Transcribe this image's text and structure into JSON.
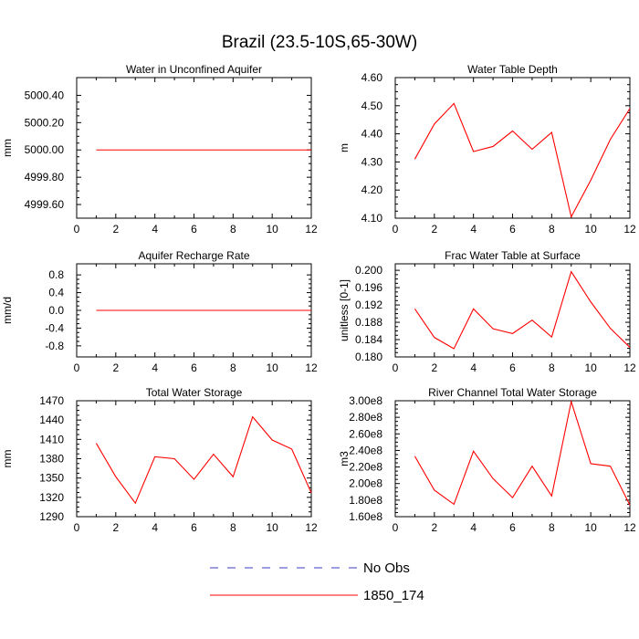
{
  "figure": {
    "title": "Brazil (23.5-10S,65-30W)"
  },
  "colors": {
    "model_line": "#ff0000",
    "obs_line": "#3b3bc4",
    "axes": "#000000"
  },
  "legend": {
    "entries": [
      {
        "label": "No Obs",
        "style": "dashed",
        "color_key": "obs_line"
      },
      {
        "label": "1850_174",
        "style": "solid",
        "color_key": "model_line"
      }
    ]
  },
  "chart_data": [
    {
      "type": "line",
      "title": "Water in Unconfined Aquifer",
      "xlabel": "",
      "ylabel": "mm",
      "xlim": [
        0,
        12
      ],
      "ylim": [
        4999.5,
        5000.53
      ],
      "xticks": [
        0,
        2,
        4,
        6,
        8,
        10,
        12
      ],
      "yticks": [
        4999.6,
        4999.8,
        5000.0,
        5000.2,
        5000.4
      ],
      "ytick_labels": [
        "4999.60",
        "4999.80",
        "5000.00",
        "5000.20",
        "5000.40"
      ],
      "series": [
        {
          "name": "1850_174",
          "x": [
            1,
            2,
            3,
            4,
            5,
            6,
            7,
            8,
            9,
            10,
            11,
            12
          ],
          "values": [
            5000,
            5000,
            5000,
            5000,
            5000,
            5000,
            5000,
            5000,
            5000,
            5000,
            5000,
            5000
          ]
        }
      ]
    },
    {
      "type": "line",
      "title": "Water Table Depth",
      "xlabel": "",
      "ylabel": "m",
      "xlim": [
        0,
        12
      ],
      "ylim": [
        4.1,
        4.6
      ],
      "xticks": [
        0,
        2,
        4,
        6,
        8,
        10,
        12
      ],
      "yticks": [
        4.1,
        4.2,
        4.3,
        4.4,
        4.5,
        4.6
      ],
      "ytick_labels": [
        "4.10",
        "4.20",
        "4.30",
        "4.40",
        "4.50",
        "4.60"
      ],
      "series": [
        {
          "name": "1850_174",
          "x": [
            1,
            2,
            3,
            4,
            5,
            6,
            7,
            8,
            9,
            10,
            11,
            12
          ],
          "values": [
            4.31,
            4.435,
            4.508,
            4.337,
            4.355,
            4.41,
            4.345,
            4.405,
            4.105,
            4.235,
            4.38,
            4.49
          ]
        }
      ]
    },
    {
      "type": "line",
      "title": "Aquifer Recharge Rate",
      "xlabel": "",
      "ylabel": "mm/d",
      "xlim": [
        0,
        12
      ],
      "ylim": [
        -1.05,
        1.05
      ],
      "xticks": [
        0,
        2,
        4,
        6,
        8,
        10,
        12
      ],
      "yticks": [
        -0.8,
        -0.4,
        0.0,
        0.4,
        0.8
      ],
      "ytick_labels": [
        "-0.8",
        "-0.4",
        "0.0",
        "0.4",
        "0.8"
      ],
      "series": [
        {
          "name": "1850_174",
          "x": [
            1,
            2,
            3,
            4,
            5,
            6,
            7,
            8,
            9,
            10,
            11,
            12
          ],
          "values": [
            0,
            0,
            0,
            0,
            0,
            0,
            0,
            0,
            0,
            0,
            0,
            0
          ]
        }
      ]
    },
    {
      "type": "line",
      "title": "Frac Water Table at Surface",
      "xlabel": "",
      "ylabel": "unitless [0-1]",
      "xlim": [
        0,
        12
      ],
      "ylim": [
        0.18,
        0.2015
      ],
      "xticks": [
        0,
        2,
        4,
        6,
        8,
        10,
        12
      ],
      "yticks": [
        0.18,
        0.184,
        0.188,
        0.192,
        0.196,
        0.2
      ],
      "ytick_labels": [
        "0.180",
        "0.184",
        "0.188",
        "0.192",
        "0.196",
        "0.200"
      ],
      "series": [
        {
          "name": "1850_174",
          "x": [
            1,
            2,
            3,
            4,
            5,
            6,
            7,
            8,
            9,
            10,
            11,
            12
          ],
          "values": [
            0.1911,
            0.1845,
            0.1819,
            0.1911,
            0.1865,
            0.1854,
            0.1885,
            0.1846,
            0.1997,
            0.1927,
            0.1866,
            0.1822
          ]
        }
      ]
    },
    {
      "type": "line",
      "title": "Total Water Storage",
      "xlabel": "",
      "ylabel": "mm",
      "xlim": [
        0,
        12
      ],
      "ylim": [
        1290,
        1470
      ],
      "xticks": [
        0,
        2,
        4,
        6,
        8,
        10,
        12
      ],
      "yticks": [
        1290,
        1320,
        1350,
        1380,
        1410,
        1440,
        1470
      ],
      "ytick_labels": [
        "1290",
        "1320",
        "1350",
        "1380",
        "1410",
        "1440",
        "1470"
      ],
      "series": [
        {
          "name": "1850_174",
          "x": [
            1,
            2,
            3,
            4,
            5,
            6,
            7,
            8,
            9,
            10,
            11,
            12
          ],
          "values": [
            1404,
            1352,
            1311,
            1383,
            1380,
            1348,
            1387,
            1352,
            1445,
            1409,
            1395,
            1327
          ]
        }
      ]
    },
    {
      "type": "line",
      "title": "River Channel Total Water Storage",
      "xlabel": "",
      "ylabel": "m3",
      "xlim": [
        0,
        12
      ],
      "ylim": [
        160000000,
        300000000
      ],
      "xticks": [
        0,
        2,
        4,
        6,
        8,
        10,
        12
      ],
      "yticks": [
        160000000,
        180000000,
        200000000,
        220000000,
        240000000,
        260000000,
        280000000,
        300000000
      ],
      "ytick_labels": [
        "1.60e8",
        "1.80e8",
        "2.00e8",
        "2.20e8",
        "2.40e8",
        "2.60e8",
        "2.80e8",
        "3.00e8"
      ],
      "series": [
        {
          "name": "1850_174",
          "x": [
            1,
            2,
            3,
            4,
            5,
            6,
            7,
            8,
            9,
            10,
            11,
            12
          ],
          "values": [
            233000000,
            192000000,
            175000000,
            239000000,
            206000000,
            183000000,
            221000000,
            185000000,
            299000000,
            224000000,
            221000000,
            174000000
          ]
        }
      ]
    }
  ]
}
